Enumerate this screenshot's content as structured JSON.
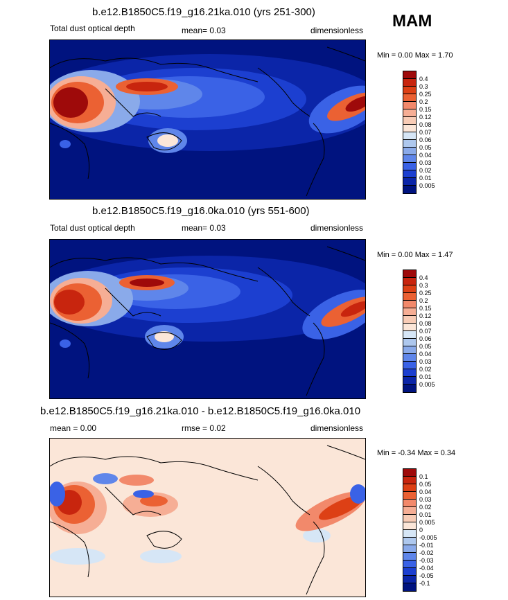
{
  "season": "MAM",
  "panels": [
    {
      "title": "b.e12.B1850C5.f19_g16.21ka.010 (yrs 251-300)",
      "left_text": "Total dust optical depth",
      "mid_text": "mean=  0.03",
      "right_text": "dimensionless",
      "minmax": "Min =   0.00 Max =   1.70",
      "colorbar": {
        "labels": [
          "0.4",
          "0.3",
          "0.25",
          "0.2",
          "0.15",
          "0.12",
          "0.08",
          "0.07",
          "0.06",
          "0.05",
          "0.04",
          "0.03",
          "0.02",
          "0.01",
          "0.005"
        ],
        "colors": [
          "#9e0a0a",
          "#c8250e",
          "#dd4015",
          "#eb6133",
          "#f2896b",
          "#f6ae95",
          "#f8ccb6",
          "#fbe6d8",
          "#d6e6f6",
          "#aec8ee",
          "#8aaaea",
          "#5f86ea",
          "#3a62e6",
          "#1c3fd0",
          "#0b25a8",
          "#00137f"
        ]
      }
    },
    {
      "title": "b.e12.B1850C5.f19_g16.0ka.010 (yrs 551-600)",
      "left_text": "Total dust optical depth",
      "mid_text": "mean=  0.03",
      "right_text": "dimensionless",
      "minmax": "Min =   0.00 Max =   1.47",
      "colorbar": {
        "labels": [
          "0.4",
          "0.3",
          "0.25",
          "0.2",
          "0.15",
          "0.12",
          "0.08",
          "0.07",
          "0.06",
          "0.05",
          "0.04",
          "0.03",
          "0.02",
          "0.01",
          "0.005"
        ],
        "colors": [
          "#9e0a0a",
          "#c8250e",
          "#dd4015",
          "#eb6133",
          "#f2896b",
          "#f6ae95",
          "#f8ccb6",
          "#fbe6d8",
          "#d6e6f6",
          "#aec8ee",
          "#8aaaea",
          "#5f86ea",
          "#3a62e6",
          "#1c3fd0",
          "#0b25a8",
          "#00137f"
        ]
      }
    },
    {
      "title": "b.e12.B1850C5.f19_g16.21ka.010 - b.e12.B1850C5.f19_g16.0ka.010",
      "left_text": "mean =   0.00",
      "mid_text": "rmse =  0.02",
      "right_text": "dimensionless",
      "minmax": "Min =  -0.34 Max =   0.34",
      "colorbar": {
        "labels": [
          "0.1",
          "0.05",
          "0.04",
          "0.03",
          "0.02",
          "0.01",
          "0.005",
          "0",
          "-0.005",
          "-0.01",
          "-0.02",
          "-0.03",
          "-0.04",
          "-0.05",
          "-0.1"
        ],
        "colors": [
          "#9e0a0a",
          "#c8250e",
          "#dd4015",
          "#eb6133",
          "#f2896b",
          "#f6ae95",
          "#f8ccb6",
          "#fbe6d8",
          "#d6e6f6",
          "#aec8ee",
          "#8aaaea",
          "#5f86ea",
          "#3a62e6",
          "#1c3fd0",
          "#0b25a8",
          "#00137f"
        ]
      }
    }
  ]
}
